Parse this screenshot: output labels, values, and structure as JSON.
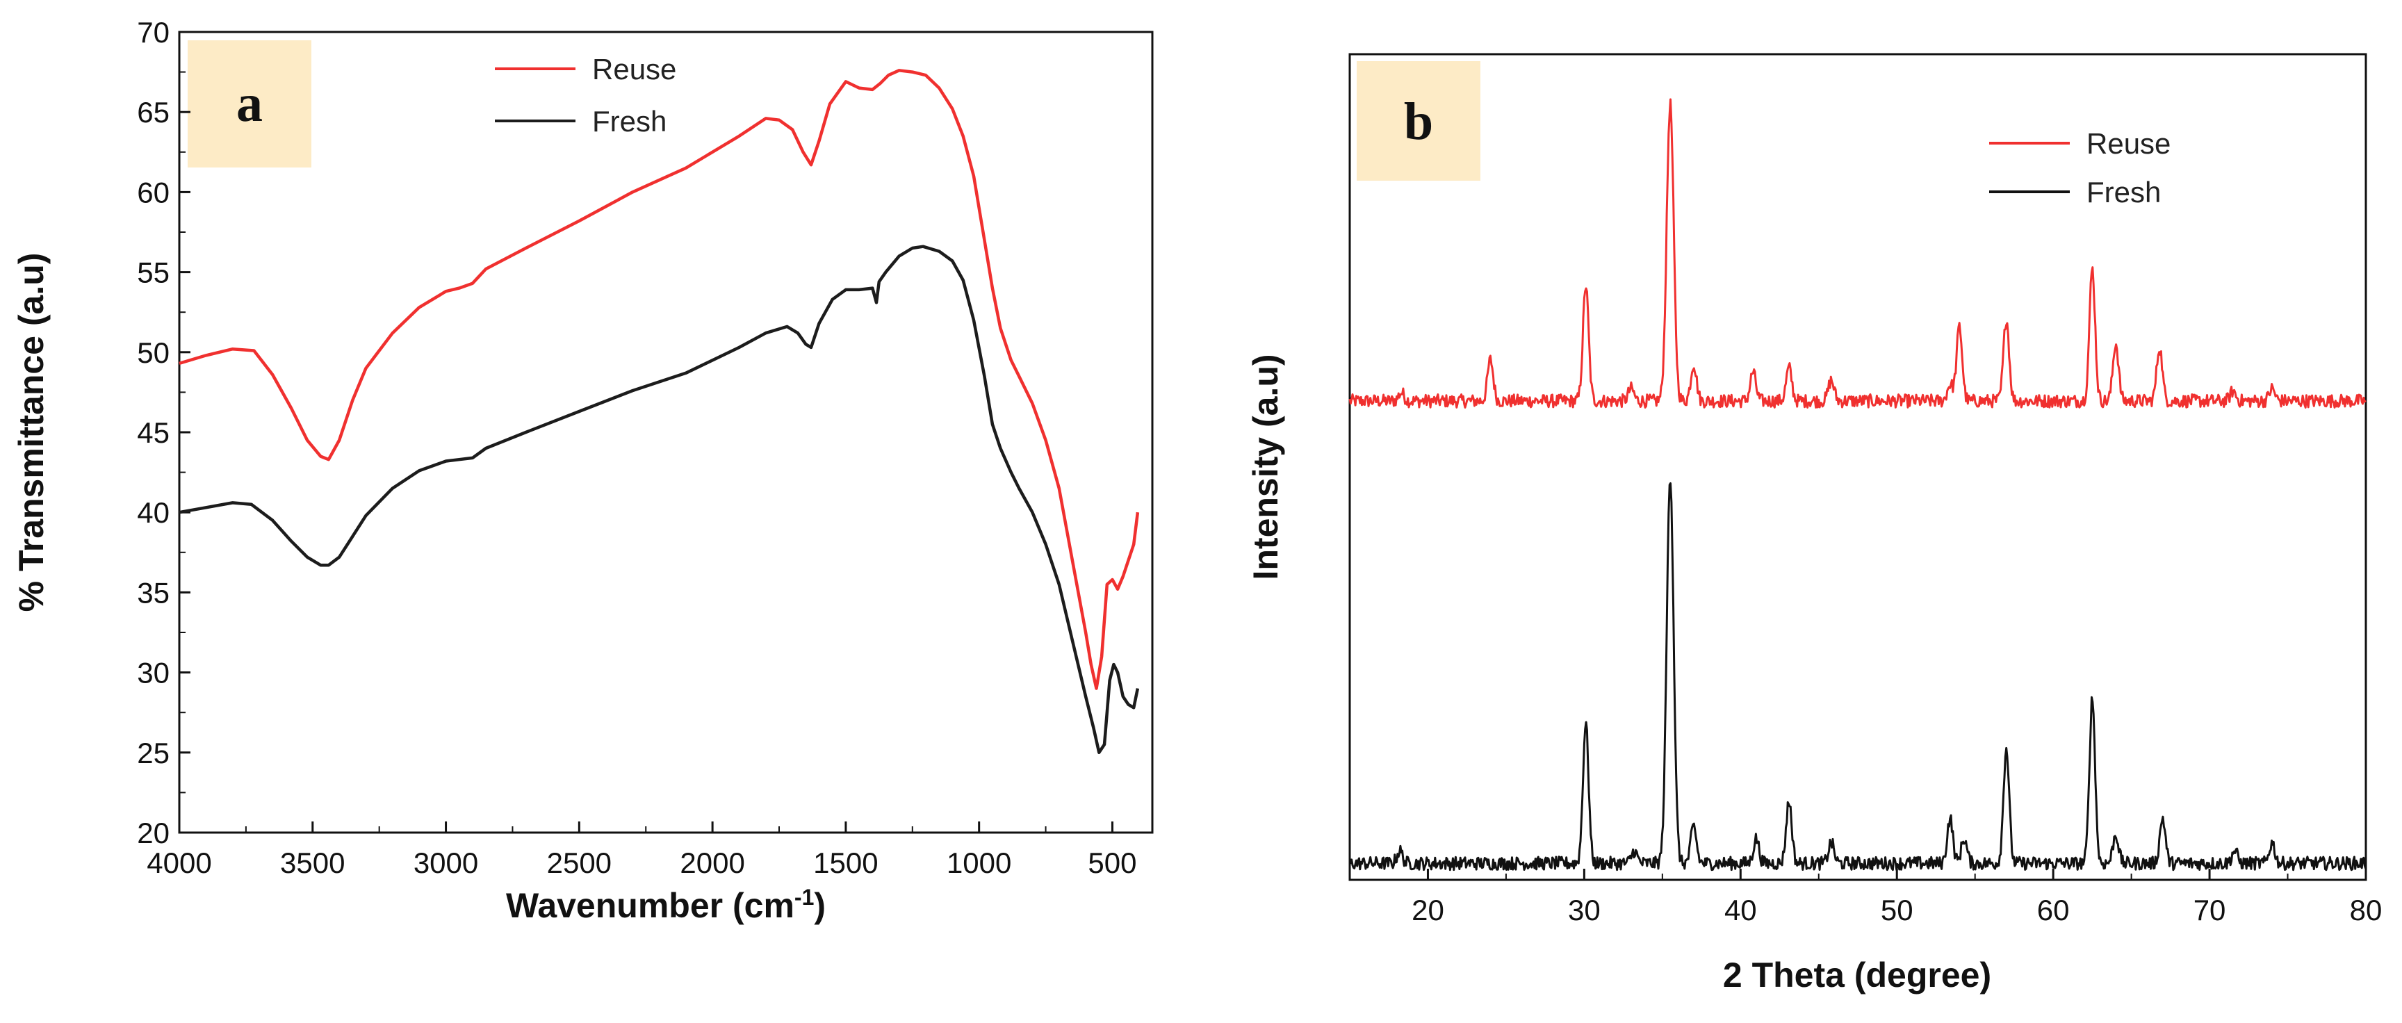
{
  "chart_data": [
    {
      "type": "line",
      "panel_label": "a",
      "xlabel": "Wavenumber (cm",
      "xlabel_sup": "-1",
      "xlabel_end": ")",
      "ylabel": "% Transmittance (a.u)",
      "xlim": [
        4000,
        350
      ],
      "ylim": [
        20,
        70
      ],
      "x_reversed": true,
      "xticks": [
        4000,
        3500,
        3000,
        2500,
        2000,
        1500,
        1000,
        500
      ],
      "yticks": [
        20,
        25,
        30,
        35,
        40,
        45,
        50,
        55,
        60,
        65,
        70
      ],
      "legend_position": "top-center",
      "series": [
        {
          "name": "Reuse",
          "color": "#f0302f",
          "points": [
            [
              4000,
              49.3
            ],
            [
              3900,
              49.8
            ],
            [
              3800,
              50.2
            ],
            [
              3720,
              50.1
            ],
            [
              3650,
              48.6
            ],
            [
              3580,
              46.5
            ],
            [
              3520,
              44.5
            ],
            [
              3470,
              43.5
            ],
            [
              3440,
              43.3
            ],
            [
              3400,
              44.5
            ],
            [
              3350,
              47.0
            ],
            [
              3300,
              49.0
            ],
            [
              3200,
              51.2
            ],
            [
              3100,
              52.8
            ],
            [
              3000,
              53.8
            ],
            [
              2950,
              54.0
            ],
            [
              2900,
              54.3
            ],
            [
              2850,
              55.2
            ],
            [
              2700,
              56.5
            ],
            [
              2500,
              58.2
            ],
            [
              2300,
              60.0
            ],
            [
              2100,
              61.5
            ],
            [
              1900,
              63.5
            ],
            [
              1800,
              64.6
            ],
            [
              1750,
              64.5
            ],
            [
              1700,
              63.9
            ],
            [
              1660,
              62.5
            ],
            [
              1630,
              61.7
            ],
            [
              1600,
              63.2
            ],
            [
              1560,
              65.5
            ],
            [
              1500,
              66.9
            ],
            [
              1450,
              66.5
            ],
            [
              1400,
              66.4
            ],
            [
              1370,
              66.8
            ],
            [
              1340,
              67.3
            ],
            [
              1300,
              67.6
            ],
            [
              1250,
              67.5
            ],
            [
              1200,
              67.3
            ],
            [
              1150,
              66.5
            ],
            [
              1100,
              65.2
            ],
            [
              1060,
              63.5
            ],
            [
              1020,
              61.0
            ],
            [
              980,
              57.0
            ],
            [
              950,
              54.0
            ],
            [
              920,
              51.5
            ],
            [
              880,
              49.5
            ],
            [
              850,
              48.5
            ],
            [
              800,
              46.8
            ],
            [
              750,
              44.5
            ],
            [
              700,
              41.5
            ],
            [
              650,
              37.0
            ],
            [
              600,
              32.5
            ],
            [
              580,
              30.5
            ],
            [
              560,
              29.0
            ],
            [
              540,
              31.0
            ],
            [
              520,
              35.5
            ],
            [
              500,
              35.8
            ],
            [
              480,
              35.2
            ],
            [
              460,
              36.0
            ],
            [
              440,
              37.0
            ],
            [
              420,
              38.0
            ],
            [
              405,
              40.0
            ]
          ]
        },
        {
          "name": "Fresh",
          "color": "#1c1c1c",
          "points": [
            [
              4000,
              40.0
            ],
            [
              3900,
              40.3
            ],
            [
              3800,
              40.6
            ],
            [
              3730,
              40.5
            ],
            [
              3650,
              39.5
            ],
            [
              3580,
              38.2
            ],
            [
              3520,
              37.2
            ],
            [
              3470,
              36.7
            ],
            [
              3440,
              36.7
            ],
            [
              3400,
              37.2
            ],
            [
              3350,
              38.5
            ],
            [
              3300,
              39.8
            ],
            [
              3200,
              41.5
            ],
            [
              3100,
              42.6
            ],
            [
              3000,
              43.2
            ],
            [
              2950,
              43.3
            ],
            [
              2900,
              43.4
            ],
            [
              2850,
              44.0
            ],
            [
              2700,
              45.0
            ],
            [
              2500,
              46.3
            ],
            [
              2300,
              47.6
            ],
            [
              2100,
              48.7
            ],
            [
              1900,
              50.3
            ],
            [
              1800,
              51.2
            ],
            [
              1720,
              51.6
            ],
            [
              1680,
              51.2
            ],
            [
              1650,
              50.5
            ],
            [
              1630,
              50.3
            ],
            [
              1600,
              51.8
            ],
            [
              1550,
              53.3
            ],
            [
              1500,
              53.9
            ],
            [
              1450,
              53.9
            ],
            [
              1400,
              54.0
            ],
            [
              1385,
              53.1
            ],
            [
              1375,
              54.4
            ],
            [
              1350,
              55.0
            ],
            [
              1300,
              56.0
            ],
            [
              1250,
              56.5
            ],
            [
              1210,
              56.6
            ],
            [
              1150,
              56.3
            ],
            [
              1100,
              55.7
            ],
            [
              1060,
              54.5
            ],
            [
              1020,
              52.0
            ],
            [
              980,
              48.5
            ],
            [
              950,
              45.5
            ],
            [
              920,
              44.0
            ],
            [
              880,
              42.5
            ],
            [
              850,
              41.5
            ],
            [
              800,
              40.0
            ],
            [
              750,
              38.0
            ],
            [
              700,
              35.5
            ],
            [
              650,
              32.0
            ],
            [
              600,
              28.5
            ],
            [
              570,
              26.5
            ],
            [
              550,
              25.0
            ],
            [
              530,
              25.5
            ],
            [
              510,
              29.5
            ],
            [
              495,
              30.5
            ],
            [
              480,
              30.0
            ],
            [
              460,
              28.5
            ],
            [
              440,
              28.0
            ],
            [
              420,
              27.8
            ],
            [
              405,
              29.0
            ]
          ]
        }
      ]
    },
    {
      "type": "line",
      "panel_label": "b",
      "xlabel": "2 Theta (degree)",
      "ylabel": "Intensity (a.u)",
      "xlim": [
        15,
        80
      ],
      "ylim": [
        0,
        10
      ],
      "xticks": [
        20,
        30,
        40,
        50,
        60,
        70,
        80
      ],
      "yticks": [],
      "legend_position": "top-right",
      "baselines": {
        "Reuse": 5.8,
        "Fresh": 0.2
      },
      "noise_amplitude": 0.08,
      "series": [
        {
          "name": "Reuse",
          "color": "#f0302f",
          "peaks": [
            [
              18.3,
              0.1
            ],
            [
              24.0,
              0.5
            ],
            [
              30.1,
              1.4
            ],
            [
              33.0,
              0.15
            ],
            [
              35.5,
              3.6
            ],
            [
              37.0,
              0.45
            ],
            [
              40.8,
              0.35
            ],
            [
              43.1,
              0.4
            ],
            [
              45.8,
              0.25
            ],
            [
              53.4,
              0.2
            ],
            [
              54.0,
              0.9
            ],
            [
              57.0,
              1.0
            ],
            [
              62.5,
              1.6
            ],
            [
              64.0,
              0.7
            ],
            [
              66.8,
              0.65
            ],
            [
              71.5,
              0.12
            ],
            [
              74.0,
              0.15
            ]
          ]
        },
        {
          "name": "Fresh",
          "color": "#111111",
          "peaks": [
            [
              18.2,
              0.15
            ],
            [
              30.1,
              1.7
            ],
            [
              33.2,
              0.15
            ],
            [
              35.5,
              4.7
            ],
            [
              37.0,
              0.45
            ],
            [
              41.0,
              0.3
            ],
            [
              43.1,
              0.75
            ],
            [
              45.8,
              0.25
            ],
            [
              53.4,
              0.55
            ],
            [
              54.3,
              0.3
            ],
            [
              57.0,
              1.4
            ],
            [
              62.5,
              2.0
            ],
            [
              64.0,
              0.35
            ],
            [
              67.0,
              0.55
            ],
            [
              71.6,
              0.15
            ],
            [
              74.0,
              0.25
            ]
          ]
        }
      ]
    }
  ]
}
